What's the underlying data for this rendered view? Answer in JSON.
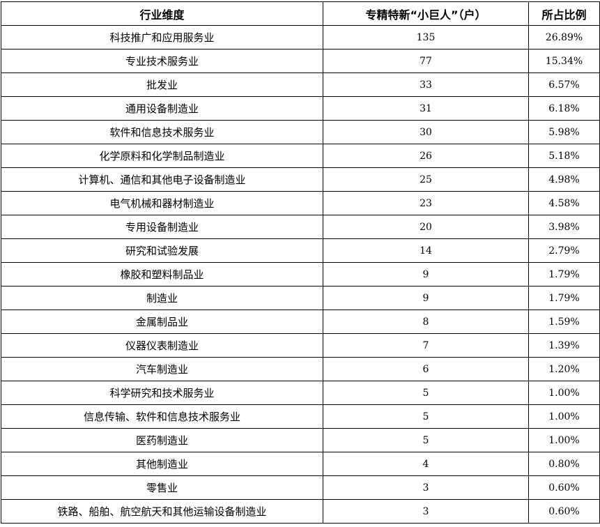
{
  "table": {
    "headers": [
      "行业维度",
      "专精特新“小巨人”（户）",
      "所占比例"
    ],
    "rows": [
      [
        "科技推广和应用服务业",
        "135",
        "26.89%"
      ],
      [
        "专业技术服务业",
        "77",
        "15.34%"
      ],
      [
        "批发业",
        "33",
        "6.57%"
      ],
      [
        "通用设备制造业",
        "31",
        "6.18%"
      ],
      [
        "软件和信息技术服务业",
        "30",
        "5.98%"
      ],
      [
        "化学原料和化学制品制造业",
        "26",
        "5.18%"
      ],
      [
        "计算机、通信和其他电子设备制造业",
        "25",
        "4.98%"
      ],
      [
        "电气机械和器材制造业",
        "23",
        "4.58%"
      ],
      [
        "专用设备制造业",
        "20",
        "3.98%"
      ],
      [
        "研究和试验发展",
        "14",
        "2.79%"
      ],
      [
        "橡胶和塑料制品业",
        "9",
        "1.79%"
      ],
      [
        "制造业",
        "9",
        "1.79%"
      ],
      [
        "金属制品业",
        "8",
        "1.59%"
      ],
      [
        "仪器仪表制造业",
        "7",
        "1.39%"
      ],
      [
        "汽车制造业",
        "6",
        "1.20%"
      ],
      [
        "科学研究和技术服务业",
        "5",
        "1.00%"
      ],
      [
        "信息传输、软件和信息技术服务业",
        "5",
        "1.00%"
      ],
      [
        "医药制造业",
        "5",
        "1.00%"
      ],
      [
        "其他制造业",
        "4",
        "0.80%"
      ],
      [
        "零售业",
        "3",
        "0.60%"
      ],
      [
        "铁路、船舶、航空航天和其他运输设备制造业",
        "3",
        "0.60%"
      ]
    ]
  }
}
